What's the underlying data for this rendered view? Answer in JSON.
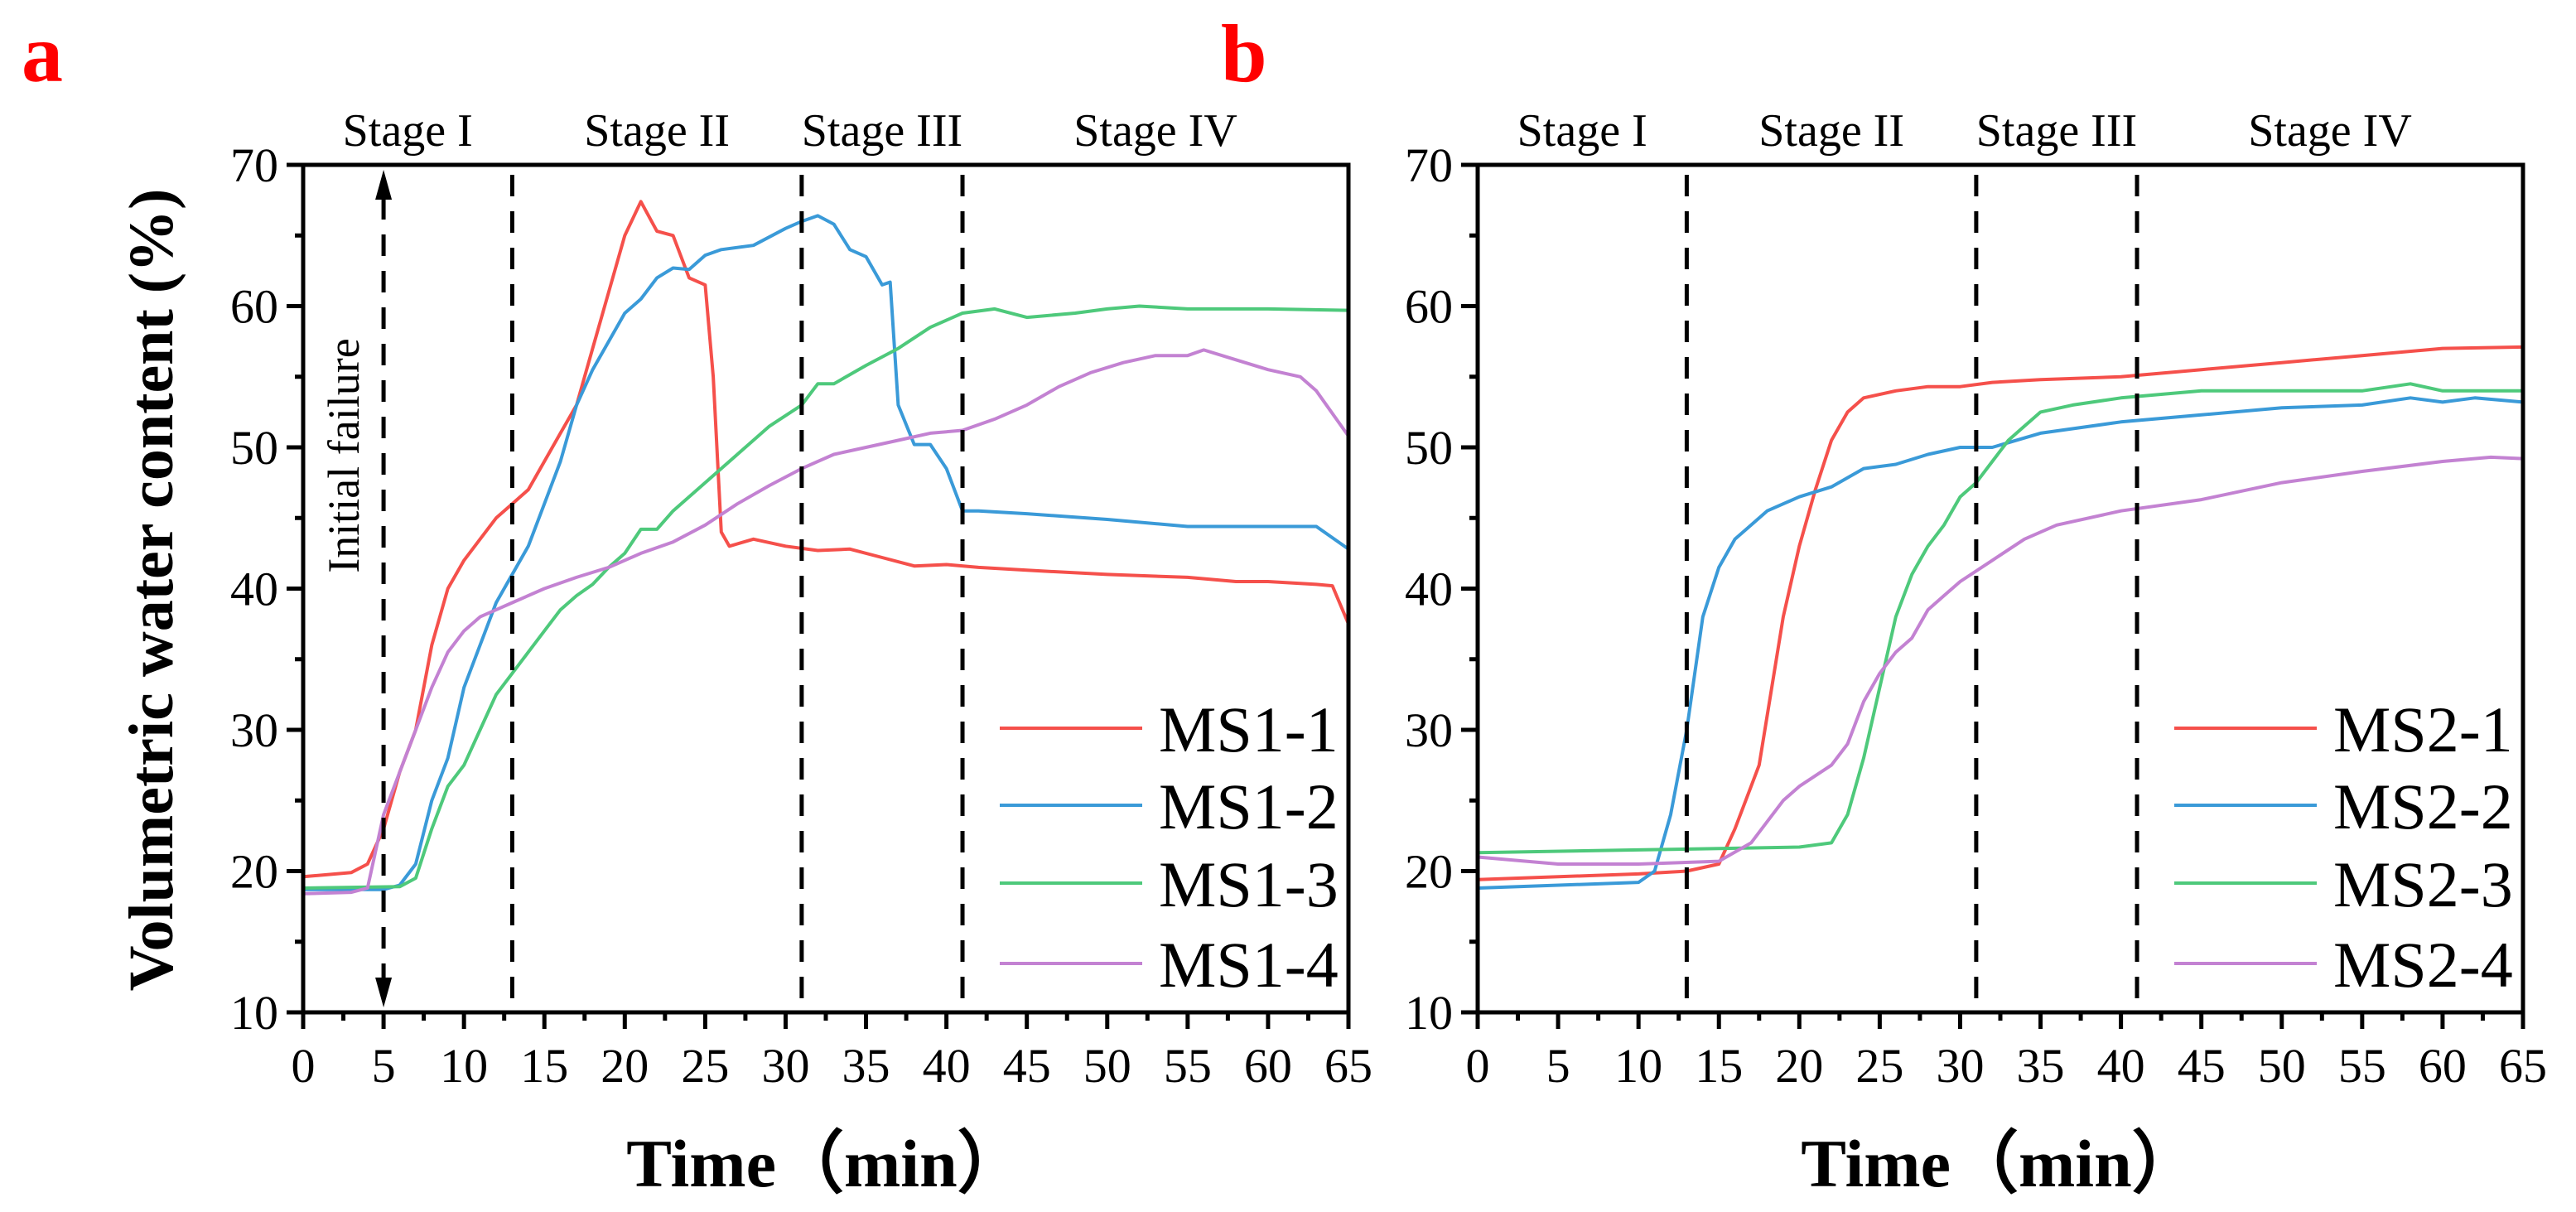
{
  "chart_data": [
    {
      "type": "line",
      "panel_label": "a",
      "ylabel": "Volumetric water content (%)",
      "xlabel": "Time（min）",
      "xlim": [
        0,
        65
      ],
      "ylim": [
        10,
        70
      ],
      "xticks": [
        0,
        5,
        10,
        15,
        20,
        25,
        30,
        35,
        40,
        45,
        50,
        55,
        60,
        65
      ],
      "yticks": [
        10,
        20,
        30,
        40,
        50,
        60,
        70
      ],
      "stage_boundaries": [
        13,
        31,
        41
      ],
      "stages": [
        "Stage I",
        "Stage II",
        "Stage III",
        "Stage IV"
      ],
      "annotation": {
        "text": "Initial failure",
        "x": 5
      },
      "legend_position": "bottom-right",
      "series": [
        {
          "name": "MS1-1",
          "color": "#f5504b",
          "points": [
            [
              0,
              19.6
            ],
            [
              3,
              19.9
            ],
            [
              4,
              20.5
            ],
            [
              5,
              23
            ],
            [
              6,
              27
            ],
            [
              7,
              30
            ],
            [
              8,
              36
            ],
            [
              9,
              40
            ],
            [
              10,
              42
            ],
            [
              11,
              43.5
            ],
            [
              12,
              45
            ],
            [
              13,
              46
            ],
            [
              14,
              47
            ],
            [
              15,
              49
            ],
            [
              16,
              51
            ],
            [
              17,
              53
            ],
            [
              18,
              57
            ],
            [
              19,
              61
            ],
            [
              20,
              65
            ],
            [
              21,
              67.4
            ],
            [
              22,
              65.3
            ],
            [
              23,
              65
            ],
            [
              24,
              62
            ],
            [
              25,
              61.5
            ],
            [
              25.5,
              55
            ],
            [
              26,
              44
            ],
            [
              26.5,
              43
            ],
            [
              28,
              43.5
            ],
            [
              30,
              43
            ],
            [
              32,
              42.7
            ],
            [
              34,
              42.8
            ],
            [
              36,
              42.2
            ],
            [
              38,
              41.6
            ],
            [
              40,
              41.7
            ],
            [
              42,
              41.5
            ],
            [
              45,
              41.3
            ],
            [
              50,
              41
            ],
            [
              55,
              40.8
            ],
            [
              58,
              40.5
            ],
            [
              60,
              40.5
            ],
            [
              63,
              40.3
            ],
            [
              64,
              40.2
            ],
            [
              65,
              37.5
            ]
          ]
        },
        {
          "name": "MS1-2",
          "color": "#3a9ad8",
          "points": [
            [
              0,
              18.7
            ],
            [
              5,
              18.7
            ],
            [
              6,
              19
            ],
            [
              7,
              20.5
            ],
            [
              8,
              25
            ],
            [
              9,
              28
            ],
            [
              10,
              33
            ],
            [
              11,
              36
            ],
            [
              12,
              39
            ],
            [
              13,
              41
            ],
            [
              14,
              43
            ],
            [
              15,
              46
            ],
            [
              16,
              49
            ],
            [
              17,
              53
            ],
            [
              18,
              55.5
            ],
            [
              19,
              57.5
            ],
            [
              20,
              59.5
            ],
            [
              21,
              60.5
            ],
            [
              22,
              62
            ],
            [
              23,
              62.7
            ],
            [
              24,
              62.6
            ],
            [
              25,
              63.6
            ],
            [
              26,
              64
            ],
            [
              28,
              64.3
            ],
            [
              30,
              65.5
            ],
            [
              31,
              66
            ],
            [
              32,
              66.4
            ],
            [
              33,
              65.8
            ],
            [
              34,
              64
            ],
            [
              35,
              63.5
            ],
            [
              36,
              61.5
            ],
            [
              36.5,
              61.7
            ],
            [
              37,
              53
            ],
            [
              38,
              50.2
            ],
            [
              39,
              50.2
            ],
            [
              40,
              48.5
            ],
            [
              41,
              45.5
            ],
            [
              42,
              45.5
            ],
            [
              45,
              45.3
            ],
            [
              50,
              44.9
            ],
            [
              55,
              44.4
            ],
            [
              60,
              44.4
            ],
            [
              63,
              44.4
            ],
            [
              65,
              42.8
            ]
          ]
        },
        {
          "name": "MS1-3",
          "color": "#4ec97b",
          "points": [
            [
              0,
              18.8
            ],
            [
              6,
              18.9
            ],
            [
              7,
              19.5
            ],
            [
              8,
              23
            ],
            [
              9,
              26
            ],
            [
              10,
              27.5
            ],
            [
              11,
              30
            ],
            [
              12,
              32.5
            ],
            [
              13,
              34
            ],
            [
              14,
              35.5
            ],
            [
              15,
              37
            ],
            [
              16,
              38.5
            ],
            [
              17,
              39.5
            ],
            [
              18,
              40.3
            ],
            [
              19,
              41.5
            ],
            [
              20,
              42.5
            ],
            [
              21,
              44.2
            ],
            [
              22,
              44.2
            ],
            [
              23,
              45.5
            ],
            [
              25,
              47.5
            ],
            [
              27,
              49.5
            ],
            [
              29,
              51.5
            ],
            [
              31,
              53
            ],
            [
              32,
              54.5
            ],
            [
              33,
              54.5
            ],
            [
              35,
              55.8
            ],
            [
              37,
              57
            ],
            [
              39,
              58.5
            ],
            [
              41,
              59.5
            ],
            [
              43,
              59.8
            ],
            [
              45,
              59.2
            ],
            [
              48,
              59.5
            ],
            [
              50,
              59.8
            ],
            [
              52,
              60
            ],
            [
              55,
              59.8
            ],
            [
              60,
              59.8
            ],
            [
              65,
              59.7
            ]
          ]
        },
        {
          "name": "MS1-4",
          "color": "#c382d2",
          "points": [
            [
              0,
              18.4
            ],
            [
              3,
              18.5
            ],
            [
              4,
              18.8
            ],
            [
              5,
              24
            ],
            [
              6,
              27
            ],
            [
              7,
              30
            ],
            [
              8,
              33
            ],
            [
              9,
              35.5
            ],
            [
              10,
              37
            ],
            [
              11,
              38
            ],
            [
              12,
              38.5
            ],
            [
              13,
              39
            ],
            [
              15,
              40
            ],
            [
              17,
              40.8
            ],
            [
              19,
              41.5
            ],
            [
              21,
              42.5
            ],
            [
              23,
              43.3
            ],
            [
              25,
              44.5
            ],
            [
              27,
              46
            ],
            [
              29,
              47.3
            ],
            [
              31,
              48.5
            ],
            [
              33,
              49.5
            ],
            [
              35,
              50
            ],
            [
              37,
              50.5
            ],
            [
              39,
              51
            ],
            [
              41,
              51.2
            ],
            [
              43,
              52
            ],
            [
              45,
              53
            ],
            [
              47,
              54.3
            ],
            [
              49,
              55.3
            ],
            [
              51,
              56
            ],
            [
              53,
              56.5
            ],
            [
              55,
              56.5
            ],
            [
              56,
              56.9
            ],
            [
              58,
              56.2
            ],
            [
              60,
              55.5
            ],
            [
              62,
              55
            ],
            [
              63,
              54
            ],
            [
              65,
              50.8
            ]
          ]
        }
      ]
    },
    {
      "type": "line",
      "panel_label": "b",
      "xlabel": "Time（min）",
      "xlim": [
        0,
        65
      ],
      "ylim": [
        10,
        70
      ],
      "xticks": [
        0,
        5,
        10,
        15,
        20,
        25,
        30,
        35,
        40,
        45,
        50,
        55,
        60,
        65
      ],
      "yticks": [
        10,
        20,
        30,
        40,
        50,
        60,
        70
      ],
      "stage_boundaries": [
        13,
        31,
        41
      ],
      "stages": [
        "Stage I",
        "Stage II",
        "Stage III",
        "Stage IV"
      ],
      "legend_position": "bottom-right",
      "series": [
        {
          "name": "MS2-1",
          "color": "#f5504b",
          "points": [
            [
              0,
              19.4
            ],
            [
              10,
              19.8
            ],
            [
              13,
              20
            ],
            [
              15,
              20.5
            ],
            [
              16,
              23
            ],
            [
              17,
              26
            ],
            [
              17.5,
              27.5
            ],
            [
              18,
              31
            ],
            [
              19,
              38
            ],
            [
              20,
              43
            ],
            [
              21,
              47
            ],
            [
              22,
              50.5
            ],
            [
              23,
              52.5
            ],
            [
              24,
              53.5
            ],
            [
              26,
              54
            ],
            [
              28,
              54.3
            ],
            [
              30,
              54.3
            ],
            [
              32,
              54.6
            ],
            [
              35,
              54.8
            ],
            [
              40,
              55
            ],
            [
              45,
              55.5
            ],
            [
              50,
              56
            ],
            [
              55,
              56.5
            ],
            [
              60,
              57
            ],
            [
              65,
              57.1
            ]
          ]
        },
        {
          "name": "MS2-2",
          "color": "#3a9ad8",
          "points": [
            [
              0,
              18.8
            ],
            [
              10,
              19.2
            ],
            [
              11,
              20
            ],
            [
              12,
              24
            ],
            [
              13,
              30
            ],
            [
              14,
              38
            ],
            [
              15,
              41.5
            ],
            [
              16,
              43.5
            ],
            [
              17,
              44.5
            ],
            [
              18,
              45.5
            ],
            [
              20,
              46.5
            ],
            [
              22,
              47.2
            ],
            [
              24,
              48.5
            ],
            [
              26,
              48.8
            ],
            [
              28,
              49.5
            ],
            [
              30,
              50
            ],
            [
              32,
              50
            ],
            [
              35,
              51
            ],
            [
              40,
              51.8
            ],
            [
              45,
              52.3
            ],
            [
              50,
              52.8
            ],
            [
              55,
              53
            ],
            [
              58,
              53.5
            ],
            [
              60,
              53.2
            ],
            [
              62,
              53.5
            ],
            [
              65,
              53.2
            ]
          ]
        },
        {
          "name": "MS2-3",
          "color": "#4ec97b",
          "points": [
            [
              0,
              21.3
            ],
            [
              10,
              21.5
            ],
            [
              15,
              21.6
            ],
            [
              20,
              21.7
            ],
            [
              22,
              22
            ],
            [
              23,
              24
            ],
            [
              24,
              28
            ],
            [
              25,
              33
            ],
            [
              26,
              38
            ],
            [
              27,
              41
            ],
            [
              28,
              43
            ],
            [
              29,
              44.5
            ],
            [
              30,
              46.5
            ],
            [
              31,
              47.5
            ],
            [
              32,
              49
            ],
            [
              33,
              50.5
            ],
            [
              34,
              51.5
            ],
            [
              35,
              52.5
            ],
            [
              37,
              53
            ],
            [
              40,
              53.5
            ],
            [
              45,
              54
            ],
            [
              50,
              54
            ],
            [
              55,
              54
            ],
            [
              58,
              54.5
            ],
            [
              60,
              54
            ],
            [
              65,
              54
            ]
          ]
        },
        {
          "name": "MS2-4",
          "color": "#c382d2",
          "points": [
            [
              0,
              21
            ],
            [
              5,
              20.5
            ],
            [
              10,
              20.5
            ],
            [
              15,
              20.7
            ],
            [
              17,
              22
            ],
            [
              18,
              23.5
            ],
            [
              19,
              25
            ],
            [
              20,
              26
            ],
            [
              22,
              27.5
            ],
            [
              23,
              29
            ],
            [
              24,
              32
            ],
            [
              25,
              34
            ],
            [
              26,
              35.5
            ],
            [
              27,
              36.5
            ],
            [
              28,
              38.5
            ],
            [
              29,
              39.5
            ],
            [
              30,
              40.5
            ],
            [
              32,
              42
            ],
            [
              34,
              43.5
            ],
            [
              36,
              44.5
            ],
            [
              40,
              45.5
            ],
            [
              45,
              46.3
            ],
            [
              50,
              47.5
            ],
            [
              55,
              48.3
            ],
            [
              60,
              49
            ],
            [
              63,
              49.3
            ],
            [
              65,
              49.2
            ]
          ]
        }
      ]
    }
  ]
}
